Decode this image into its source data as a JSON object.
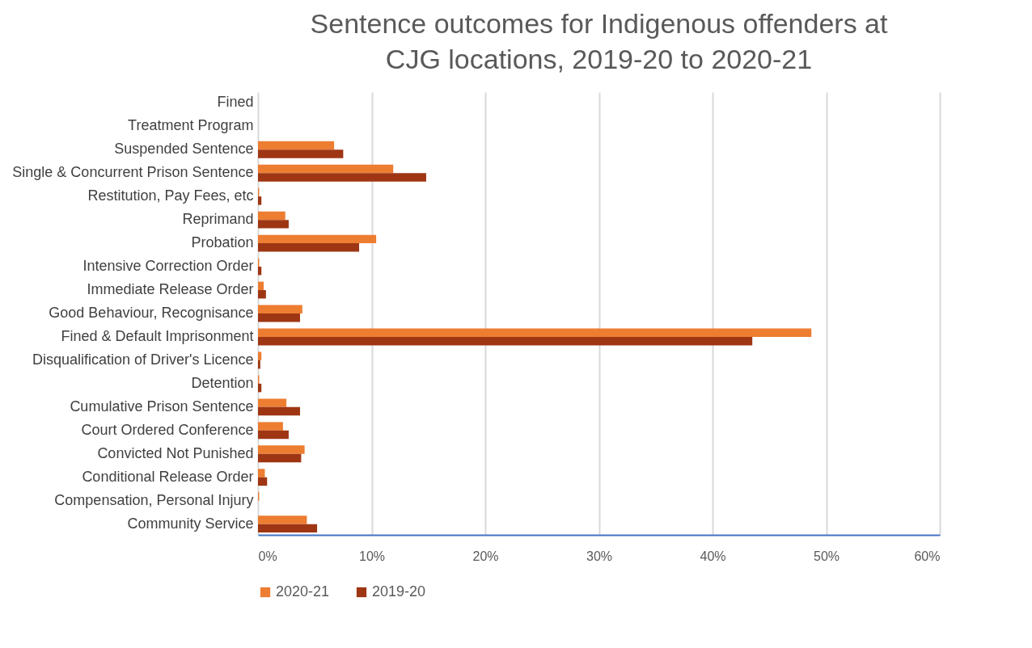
{
  "chart_data": {
    "type": "bar",
    "orientation": "horizontal",
    "title": "Sentence outcomes for Indigenous offenders at CJG locations, 2019-20 to 2020-21",
    "categories": [
      "Fined",
      "Treatment Program",
      "Suspended Sentence",
      "Single & Concurrent Prison Sentence",
      "Restitution, Pay Fees, etc",
      "Reprimand",
      "Probation",
      "Intensive Correction Order",
      "Immediate Release Order",
      "Good Behaviour, Recognisance",
      "Fined & Default Imprisonment",
      "Disqualification of Driver's Licence",
      "Detention",
      "Cumulative Prison Sentence",
      "Court Ordered Conference",
      "Convicted Not Punished",
      "Conditional Release Order",
      "Compensation, Personal Injury",
      "Community Service"
    ],
    "series": [
      {
        "name": "2020-21",
        "color": "#ed7d31",
        "values": [
          0,
          0,
          6.7,
          11.9,
          0.1,
          2.4,
          10.4,
          0.1,
          0.5,
          3.9,
          48.7,
          0.3,
          0.1,
          2.5,
          2.2,
          4.1,
          0.6,
          0.1,
          4.3
        ]
      },
      {
        "name": "2019-20",
        "color": "#9e3614",
        "values": [
          0,
          0,
          7.5,
          14.8,
          0.3,
          2.7,
          8.9,
          0.3,
          0.7,
          3.7,
          43.5,
          0.2,
          0.3,
          3.7,
          2.7,
          3.8,
          0.8,
          0,
          5.2
        ]
      }
    ],
    "xlim": [
      0,
      60
    ],
    "xticks": [
      {
        "value": 0,
        "label": "0%"
      },
      {
        "value": 10,
        "label": "10%"
      },
      {
        "value": 20,
        "label": "20%"
      },
      {
        "value": 30,
        "label": "30%"
      },
      {
        "value": 40,
        "label": "40%"
      },
      {
        "value": 50,
        "label": "50%"
      },
      {
        "value": 60,
        "label": "60%"
      }
    ],
    "grid": "x",
    "legend": "bottom"
  }
}
